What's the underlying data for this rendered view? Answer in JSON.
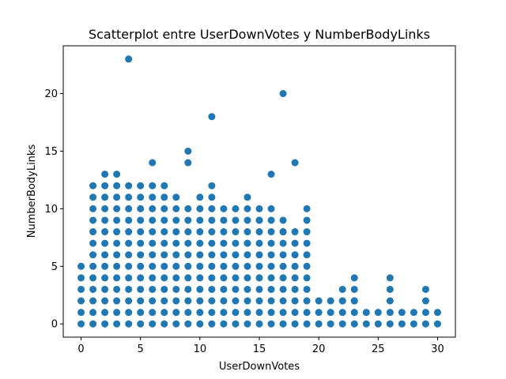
{
  "chart_data": {
    "type": "scatter",
    "title": "Scatterplot entre UserDownVotes y NumberBodyLinks",
    "xlabel": "UserDownVotes",
    "ylabel": "NumberBodyLinks",
    "xlim": [
      -1.5,
      31.5
    ],
    "ylim": [
      -1.15,
      24.15
    ],
    "xticks": [
      "0",
      "5",
      "10",
      "15",
      "20",
      "25",
      "30"
    ],
    "yticks": [
      "0",
      "5",
      "10",
      "15",
      "20"
    ],
    "grid": false,
    "marker_color": "#1f77b4",
    "column_max": [
      5,
      12,
      13,
      13,
      12,
      12,
      12,
      12,
      11,
      10,
      11,
      12,
      10,
      10,
      11,
      10,
      10,
      9,
      8,
      10,
      2,
      2,
      3,
      4,
      1,
      1,
      4,
      1,
      1,
      3,
      1
    ],
    "outliers": [
      {
        "x": 4,
        "y": 23
      },
      {
        "x": 17,
        "y": 20
      },
      {
        "x": 11,
        "y": 18
      },
      {
        "x": 9,
        "y": 15
      },
      {
        "x": 9,
        "y": 14
      },
      {
        "x": 6,
        "y": 14
      },
      {
        "x": 18,
        "y": 14
      },
      {
        "x": 16,
        "y": 13
      },
      {
        "x": 15,
        "y": 9
      },
      {
        "x": 17,
        "y": 8
      },
      {
        "x": 14,
        "y": 7
      },
      {
        "x": 22,
        "y": 2
      },
      {
        "x": 23,
        "y": 2
      }
    ]
  }
}
